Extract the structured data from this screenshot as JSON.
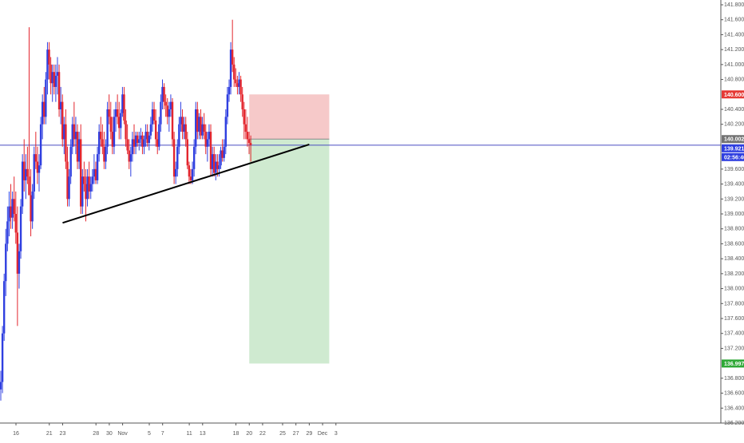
{
  "chart_data": {
    "type": "candlestick",
    "title": "",
    "xlabel": "",
    "ylabel": "",
    "ylim": [
      136.1,
      141.95
    ],
    "grid": false,
    "colors": {
      "up": "#2f3fe0",
      "down": "#e3262e",
      "trendline": "#000000",
      "last_price_line": "#4a4ec0",
      "stop_zone": "#f6c9c9",
      "target_zone": "#cfead0",
      "stop_tag": "#e53935",
      "entry_tag": "#737373",
      "last_tag": "#2f3fe0",
      "timer_tag": "#2f3fe0",
      "target_tag": "#2ea836",
      "axis_text": "#555555"
    },
    "y_ticks": [
      "141.800",
      "141.600",
      "141.400",
      "141.200",
      "141.000",
      "140.800",
      "140.400",
      "140.200",
      "139.600",
      "139.400",
      "139.200",
      "139.000",
      "138.800",
      "138.600",
      "138.400",
      "138.200",
      "138.000",
      "137.800",
      "137.600",
      "137.400",
      "137.200",
      "136.800",
      "136.600",
      "136.400",
      "136.200"
    ],
    "x_ticks": [
      {
        "label": "16",
        "date": "2018-10-16"
      },
      {
        "label": "21",
        "date": "2018-10-21"
      },
      {
        "label": "23",
        "date": "2018-10-23"
      },
      {
        "label": "28",
        "date": "2018-10-28"
      },
      {
        "label": "30",
        "date": "2018-10-30"
      },
      {
        "label": "Nov",
        "date": "2018-11-01"
      },
      {
        "label": "5",
        "date": "2018-11-05"
      },
      {
        "label": "7",
        "date": "2018-11-07"
      },
      {
        "label": "11",
        "date": "2018-11-11"
      },
      {
        "label": "13",
        "date": "2018-11-13"
      },
      {
        "label": "18",
        "date": "2018-11-18"
      },
      {
        "label": "20",
        "date": "2018-11-20"
      },
      {
        "label": "22",
        "date": "2018-11-22"
      },
      {
        "label": "25",
        "date": "2018-11-25"
      },
      {
        "label": "27",
        "date": "2018-11-27"
      },
      {
        "label": "29",
        "date": "2018-11-29"
      },
      {
        "label": "Dec",
        "date": "2018-12-01"
      },
      {
        "label": "3",
        "date": "2018-12-03"
      }
    ],
    "price_tags": {
      "stop": "140.600",
      "entry": "140.002",
      "last": "139.921",
      "timer": "02:56:40",
      "target": "136.997"
    },
    "position": {
      "side": "short",
      "start_date": "2018-11-20",
      "end_date": "2018-12-02",
      "entry": 140.002,
      "stop": 140.6,
      "target": 136.997
    },
    "last_price": 139.921,
    "trendline": {
      "start": [
        "2018-10-23",
        138.88
      ],
      "end": [
        "2018-11-29",
        139.93
      ]
    },
    "series": [
      {
        "values": [
          [
            136.65,
            136.9,
            136.5,
            136.75
          ],
          [
            136.75,
            137.5,
            136.6,
            137.4
          ],
          [
            137.4,
            138.2,
            137.3,
            138.1
          ],
          [
            138.1,
            138.8,
            137.9,
            138.6
          ],
          [
            138.6,
            139.1,
            138.5,
            138.9
          ],
          [
            138.9,
            139.3,
            138.7,
            139.1
          ],
          [
            139.1,
            139.4,
            138.8,
            138.95
          ],
          [
            138.95,
            139.3,
            138.8,
            139.2
          ],
          [
            139.2,
            139.5,
            138.9,
            139.0
          ],
          [
            139.0,
            139.3,
            138.6,
            138.75
          ],
          [
            138.75,
            139.1,
            137.5,
            138.2
          ],
          [
            138.2,
            138.6,
            138.0,
            138.5
          ],
          [
            138.5,
            139.2,
            138.4,
            139.1
          ],
          [
            139.1,
            139.8,
            139.0,
            139.7
          ],
          [
            139.7,
            140.0,
            139.3,
            139.45
          ],
          [
            139.45,
            139.8,
            139.2,
            139.6
          ],
          [
            139.6,
            139.9,
            139.4,
            139.5
          ],
          [
            139.5,
            141.5,
            139.3,
            139.25
          ],
          [
            139.25,
            139.6,
            138.7,
            138.9
          ],
          [
            138.9,
            139.4,
            138.8,
            139.3
          ],
          [
            139.3,
            139.9,
            139.2,
            139.8
          ],
          [
            139.8,
            140.1,
            139.6,
            139.7
          ],
          [
            139.7,
            139.9,
            139.4,
            139.55
          ],
          [
            139.55,
            139.8,
            139.3,
            139.65
          ],
          [
            139.65,
            140.3,
            139.6,
            140.2
          ],
          [
            140.2,
            140.6,
            140.0,
            140.5
          ],
          [
            140.5,
            140.7,
            140.2,
            140.3
          ],
          [
            140.3,
            140.9,
            140.2,
            140.8
          ],
          [
            140.8,
            141.3,
            140.6,
            141.2
          ],
          [
            141.2,
            141.3,
            140.8,
            141.0
          ],
          [
            141.0,
            141.1,
            140.6,
            140.75
          ],
          [
            140.75,
            141.0,
            140.5,
            140.9
          ],
          [
            140.9,
            141.0,
            140.6,
            140.7
          ],
          [
            140.7,
            141.0,
            140.5,
            140.85
          ],
          [
            140.85,
            141.1,
            140.6,
            140.9
          ],
          [
            140.9,
            141.0,
            140.3,
            140.4
          ],
          [
            140.4,
            140.7,
            140.2,
            140.5
          ],
          [
            140.5,
            140.6,
            139.9,
            140.0
          ],
          [
            140.0,
            140.3,
            139.8,
            140.2
          ],
          [
            140.2,
            140.4,
            139.6,
            139.7
          ],
          [
            139.7,
            139.9,
            139.1,
            139.2
          ],
          [
            139.2,
            139.6,
            139.1,
            139.5
          ],
          [
            139.5,
            140.0,
            139.4,
            139.9
          ],
          [
            139.9,
            140.3,
            139.8,
            140.2
          ],
          [
            140.2,
            140.5,
            139.9,
            140.0
          ],
          [
            140.0,
            140.3,
            139.8,
            140.1
          ],
          [
            140.1,
            140.2,
            139.6,
            139.7
          ],
          [
            139.7,
            140.1,
            139.6,
            140.0
          ],
          [
            140.0,
            140.2,
            139.0,
            139.1
          ],
          [
            139.1,
            139.6,
            139.0,
            139.5
          ],
          [
            139.5,
            139.7,
            139.3,
            139.4
          ],
          [
            139.4,
            139.6,
            138.9,
            139.2
          ],
          [
            139.2,
            139.6,
            139.1,
            139.5
          ],
          [
            139.5,
            139.7,
            139.2,
            139.3
          ],
          [
            139.3,
            139.5,
            139.2,
            139.4
          ],
          [
            139.4,
            139.6,
            139.3,
            139.5
          ],
          [
            139.5,
            139.8,
            139.4,
            139.6
          ],
          [
            139.6,
            139.7,
            139.4,
            139.45
          ],
          [
            139.45,
            139.9,
            139.4,
            139.8
          ],
          [
            139.8,
            140.2,
            139.7,
            140.1
          ],
          [
            140.1,
            140.3,
            139.9,
            140.0
          ],
          [
            140.0,
            140.2,
            139.8,
            139.9
          ],
          [
            139.9,
            140.1,
            139.6,
            139.7
          ],
          [
            139.7,
            140.0,
            139.6,
            139.9
          ],
          [
            139.9,
            140.5,
            139.8,
            140.4
          ],
          [
            140.4,
            140.6,
            140.2,
            140.3
          ],
          [
            140.3,
            140.5,
            140.0,
            140.1
          ],
          [
            140.1,
            140.3,
            139.8,
            139.9
          ],
          [
            139.9,
            140.4,
            139.8,
            140.3
          ],
          [
            140.3,
            140.5,
            140.1,
            140.4
          ],
          [
            140.4,
            140.6,
            140.2,
            140.3
          ],
          [
            140.3,
            140.5,
            140.0,
            140.15
          ],
          [
            140.15,
            140.4,
            140.0,
            140.35
          ],
          [
            140.35,
            140.7,
            140.3,
            140.6
          ],
          [
            140.6,
            140.7,
            140.2,
            140.25
          ],
          [
            140.25,
            140.4,
            139.9,
            140.0
          ],
          [
            140.0,
            140.2,
            139.8,
            139.85
          ],
          [
            139.85,
            140.0,
            139.6,
            139.7
          ],
          [
            139.7,
            139.9,
            139.5,
            139.8
          ],
          [
            139.8,
            140.1,
            139.7,
            140.0
          ],
          [
            140.0,
            140.2,
            139.8,
            139.9
          ],
          [
            139.9,
            140.1,
            139.8,
            140.05
          ],
          [
            140.05,
            140.1,
            139.9,
            139.95
          ],
          [
            139.95,
            140.1,
            139.85,
            140.0
          ],
          [
            140.0,
            140.15,
            139.9,
            140.05
          ],
          [
            140.05,
            140.1,
            139.8,
            139.9
          ],
          [
            139.9,
            140.05,
            139.8,
            140.0
          ],
          [
            140.0,
            140.2,
            139.9,
            140.1
          ],
          [
            140.1,
            140.2,
            139.9,
            139.95
          ],
          [
            139.95,
            140.1,
            139.85,
            140.05
          ],
          [
            140.05,
            140.3,
            140.0,
            140.2
          ],
          [
            140.2,
            140.5,
            140.1,
            140.4
          ],
          [
            140.4,
            140.5,
            140.2,
            140.25
          ],
          [
            140.25,
            140.4,
            139.9,
            140.0
          ],
          [
            140.0,
            140.1,
            139.8,
            139.9
          ],
          [
            139.9,
            140.3,
            139.85,
            140.2
          ],
          [
            140.2,
            140.6,
            140.1,
            140.5
          ],
          [
            140.5,
            140.8,
            140.4,
            140.7
          ],
          [
            140.7,
            140.75,
            140.4,
            140.5
          ],
          [
            140.5,
            140.6,
            140.3,
            140.45
          ],
          [
            140.45,
            140.55,
            140.2,
            140.3
          ],
          [
            140.3,
            140.5,
            140.1,
            140.4
          ],
          [
            140.4,
            140.6,
            140.3,
            140.5
          ],
          [
            140.5,
            140.55,
            139.9,
            140.0
          ],
          [
            140.0,
            140.1,
            139.4,
            139.5
          ],
          [
            139.5,
            139.7,
            139.4,
            139.6
          ],
          [
            139.6,
            140.0,
            139.5,
            139.9
          ],
          [
            139.9,
            140.3,
            139.8,
            140.2
          ],
          [
            140.2,
            140.5,
            140.1,
            140.3
          ],
          [
            140.3,
            140.4,
            140.0,
            140.1
          ],
          [
            140.1,
            140.3,
            140.0,
            140.2
          ],
          [
            140.2,
            140.3,
            139.9,
            140.0
          ],
          [
            140.0,
            140.1,
            139.6,
            139.65
          ],
          [
            139.65,
            139.7,
            139.4,
            139.5
          ],
          [
            139.5,
            139.6,
            139.4,
            139.45
          ],
          [
            139.45,
            139.7,
            139.4,
            139.6
          ],
          [
            139.6,
            140.0,
            139.5,
            139.9
          ],
          [
            139.9,
            140.5,
            139.8,
            140.4
          ],
          [
            140.4,
            140.5,
            140.0,
            140.1
          ],
          [
            140.1,
            140.35,
            140.0,
            140.3
          ],
          [
            140.3,
            140.4,
            140.0,
            140.05
          ],
          [
            140.05,
            140.3,
            140.0,
            140.2
          ],
          [
            140.2,
            140.35,
            140.0,
            140.1
          ],
          [
            140.1,
            140.2,
            139.8,
            139.9
          ],
          [
            139.9,
            140.1,
            139.7,
            140.0
          ],
          [
            140.0,
            140.2,
            139.9,
            140.1
          ],
          [
            140.1,
            140.2,
            139.5,
            139.6
          ],
          [
            139.6,
            139.9,
            139.5,
            139.8
          ],
          [
            139.8,
            139.9,
            139.5,
            139.55
          ],
          [
            139.55,
            139.8,
            139.45,
            139.7
          ],
          [
            139.7,
            139.8,
            139.5,
            139.6
          ],
          [
            139.6,
            139.8,
            139.5,
            139.65
          ],
          [
            139.65,
            139.9,
            139.6,
            139.85
          ],
          [
            139.85,
            140.0,
            139.7,
            139.75
          ],
          [
            139.75,
            140.0,
            139.7,
            139.9
          ],
          [
            139.9,
            140.4,
            139.8,
            140.3
          ],
          [
            140.3,
            140.7,
            140.2,
            140.6
          ],
          [
            140.6,
            140.8,
            140.5,
            140.7
          ],
          [
            140.7,
            141.3,
            140.6,
            141.2
          ],
          [
            141.2,
            141.6,
            140.9,
            141.0
          ],
          [
            141.0,
            141.1,
            140.7,
            140.8
          ],
          [
            140.8,
            140.95,
            140.7,
            140.75
          ],
          [
            140.75,
            140.85,
            140.6,
            140.7
          ],
          [
            140.7,
            140.9,
            140.6,
            140.8
          ],
          [
            140.8,
            140.85,
            140.5,
            140.6
          ],
          [
            140.6,
            140.7,
            140.3,
            140.4
          ],
          [
            140.4,
            140.5,
            140.0,
            140.2
          ],
          [
            140.2,
            140.4,
            140.0,
            140.1
          ],
          [
            140.1,
            140.3,
            139.9,
            140.0
          ],
          [
            140.0,
            140.1,
            139.8,
            139.95
          ],
          [
            139.95,
            140.05,
            139.7,
            139.921
          ]
        ]
      }
    ]
  }
}
